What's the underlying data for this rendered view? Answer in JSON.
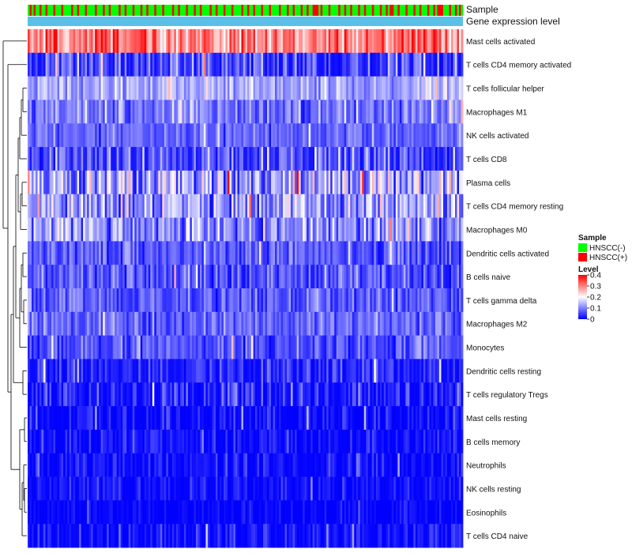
{
  "chart_data": {
    "type": "heatmap",
    "title": "",
    "annotation_tracks": [
      {
        "key": "sample",
        "label": "Sample"
      },
      {
        "key": "level",
        "label": "Gene expression level"
      }
    ],
    "level_track_color": "#5bc0e8",
    "n_samples": 220,
    "hnscc_pos_columns": [
      1,
      3,
      6,
      9,
      13,
      17,
      22,
      25,
      29,
      34,
      38,
      41,
      46,
      49,
      53,
      57,
      60,
      64,
      68,
      73,
      76,
      80,
      84,
      87,
      92,
      95,
      99,
      103,
      108,
      111,
      114,
      118,
      122,
      127,
      131,
      134,
      138,
      141,
      144,
      145,
      146,
      148,
      152,
      157,
      160,
      163,
      167,
      170,
      174,
      178,
      181,
      183,
      184,
      187,
      191,
      195,
      198,
      202,
      205,
      207,
      208,
      209,
      213,
      216,
      218
    ],
    "rows": [
      {
        "label": "Mast cells activated",
        "mean": 0.3,
        "spread": 0.1
      },
      {
        "label": "T cells CD4 memory activated",
        "mean": 0.05,
        "spread": 0.1
      },
      {
        "label": "T cells follicular helper",
        "mean": 0.13,
        "spread": 0.06
      },
      {
        "label": "Macrophages M1",
        "mean": 0.1,
        "spread": 0.07
      },
      {
        "label": "NK cells activated",
        "mean": 0.08,
        "spread": 0.05
      },
      {
        "label": "T cells CD8",
        "mean": 0.06,
        "spread": 0.09
      },
      {
        "label": "Plasma cells",
        "mean": 0.12,
        "spread": 0.12
      },
      {
        "label": "T cells CD4 memory resting",
        "mean": 0.12,
        "spread": 0.11
      },
      {
        "label": "Macrophages M0",
        "mean": 0.11,
        "spread": 0.1
      },
      {
        "label": "Dendritic cells activated",
        "mean": 0.07,
        "spread": 0.06
      },
      {
        "label": "B cells naive",
        "mean": 0.06,
        "spread": 0.07
      },
      {
        "label": "T cells gamma delta",
        "mean": 0.07,
        "spread": 0.06
      },
      {
        "label": "Macrophages M2",
        "mean": 0.08,
        "spread": 0.06
      },
      {
        "label": "Monocytes",
        "mean": 0.06,
        "spread": 0.06
      },
      {
        "label": "Dendritic cells resting",
        "mean": 0.03,
        "spread": 0.06
      },
      {
        "label": "T cells regulatory  Tregs",
        "mean": 0.02,
        "spread": 0.08
      },
      {
        "label": "Mast cells resting",
        "mean": 0.01,
        "spread": 0.06
      },
      {
        "label": "B cells memory",
        "mean": 0.01,
        "spread": 0.05
      },
      {
        "label": "Neutrophils",
        "mean": 0.01,
        "spread": 0.05
      },
      {
        "label": "NK cells resting",
        "mean": 0.01,
        "spread": 0.04
      },
      {
        "label": "Eosinophils",
        "mean": 0.0,
        "spread": 0.03
      },
      {
        "label": "T cells CD4 naive",
        "mean": 0.01,
        "spread": 0.05
      }
    ],
    "value_range": [
      0,
      0.4
    ],
    "colorscale": {
      "low": "#0000ff",
      "mid": "#ffffff",
      "high": "#ff0000",
      "mid_value": 0.2
    },
    "legend": {
      "placement": "right",
      "sample_title": "Sample",
      "sample_entries": [
        {
          "label": "HNSCC(-)",
          "color": "#00ff00"
        },
        {
          "label": "HNSCC(+)",
          "color": "#ff0000"
        }
      ],
      "level_title": "Level",
      "level_ticks": [
        {
          "label": "0.4",
          "value": 0.4
        },
        {
          "label": "0.3",
          "value": 0.3
        },
        {
          "label": "0.2",
          "value": 0.2
        },
        {
          "label": "0.1",
          "value": 0.1
        },
        {
          "label": "0",
          "value": 0
        }
      ]
    },
    "row_dendrogram": "left"
  }
}
